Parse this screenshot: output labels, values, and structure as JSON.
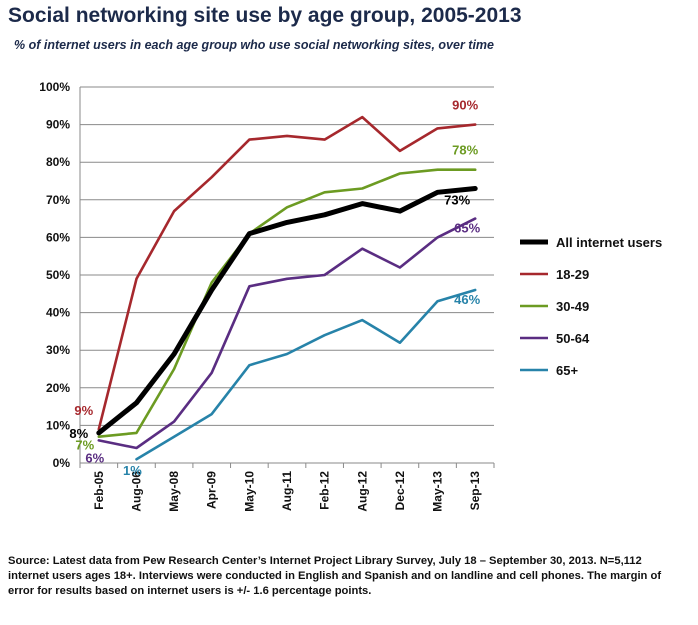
{
  "header": {
    "title": "Social networking site use by age group, 2005-2013",
    "subtitle": "% of internet users in each age group who use social networking sites, over time"
  },
  "chart_data": {
    "type": "line",
    "title": "Social networking site use by age group, 2005-2013",
    "xlabel": "",
    "ylabel": "",
    "x": [
      "Feb-05",
      "Aug-06",
      "May-08",
      "Apr-09",
      "May-10",
      "Aug-11",
      "Feb-12",
      "Aug-12",
      "Dec-12",
      "May-13",
      "Sep-13"
    ],
    "ylim": [
      0,
      100
    ],
    "yticks": [
      "0%",
      "10%",
      "20%",
      "30%",
      "40%",
      "50%",
      "60%",
      "70%",
      "80%",
      "90%",
      "100%"
    ],
    "grid": true,
    "legend_position": "right",
    "series": [
      {
        "name": "All internet users",
        "color": "#000000",
        "values": [
          8,
          16,
          29,
          46,
          61,
          64,
          66,
          69,
          67,
          72,
          73
        ],
        "first_label": "8%",
        "last_label": "73%"
      },
      {
        "name": "18-29",
        "color": "#a6282d",
        "values": [
          9,
          49,
          67,
          76,
          86,
          87,
          86,
          92,
          83,
          89,
          90
        ],
        "first_label": "9%",
        "last_label": "90%"
      },
      {
        "name": "30-49",
        "color": "#6c9b22",
        "values": [
          7,
          8,
          25,
          48,
          61,
          68,
          72,
          73,
          77,
          78,
          78
        ],
        "first_label": "7%",
        "last_label": "78%"
      },
      {
        "name": "50-64",
        "color": "#5a2d82",
        "values": [
          6,
          4,
          11,
          24,
          47,
          49,
          50,
          57,
          52,
          60,
          65
        ],
        "first_label": "6%",
        "last_label": "65%"
      },
      {
        "name": "65+",
        "color": "#2783a9",
        "values": [
          null,
          1,
          7,
          13,
          26,
          29,
          34,
          38,
          32,
          43,
          46
        ],
        "first_label": "1%",
        "last_label": "46%"
      }
    ]
  },
  "source": "Source: Latest data from Pew Research Center’s Internet Project Library Survey, July 18 – September 30, 2013. N=5,112 internet users ages 18+. Interviews were conducted in English and Spanish and on landline and cell phones. The margin of error for results based on internet users is +/- 1.6 percentage points."
}
